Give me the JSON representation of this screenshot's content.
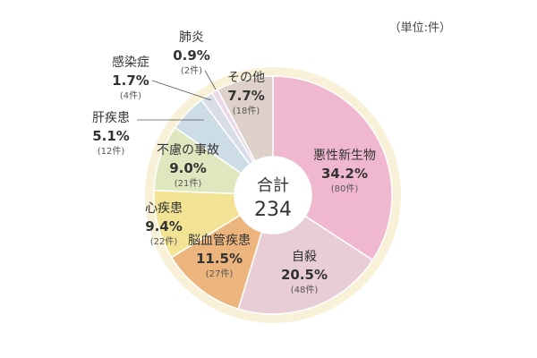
{
  "unit_label": "（単位:件）",
  "center": {
    "line1": "合計",
    "line2": "234"
  },
  "chart_data": {
    "type": "pie",
    "variant": "donut",
    "total": 234,
    "unit": "件",
    "slices": [
      {
        "label": "悪性新生物",
        "percent": "34.2%",
        "count_label": "(80件)",
        "value": 80,
        "color": "#f0b8cf"
      },
      {
        "label": "自殺",
        "percent": "20.5%",
        "count_label": "(48件)",
        "value": 48,
        "color": "#e8cdd6"
      },
      {
        "label": "脳血管疾患",
        "percent": "11.5%",
        "count_label": "(27件)",
        "value": 27,
        "color": "#ecb57e"
      },
      {
        "label": "心疾患",
        "percent": "9.4%",
        "count_label": "(22件)",
        "value": 22,
        "color": "#f3e495"
      },
      {
        "label": "不慮の事故",
        "percent": "9.0%",
        "count_label": "(21件)",
        "value": 21,
        "color": "#dfe7bf"
      },
      {
        "label": "肝疾患",
        "percent": "5.1%",
        "count_label": "(12件)",
        "value": 12,
        "color": "#cddde6"
      },
      {
        "label": "感染症",
        "percent": "1.7%",
        "count_label": "(4件)",
        "value": 4,
        "color": "#d8dde8"
      },
      {
        "label": "肺炎",
        "percent": "0.9%",
        "count_label": "(2件)",
        "value": 2,
        "color": "#ead8e6"
      },
      {
        "label": "その他",
        "percent": "7.7%",
        "count_label": "(18件)",
        "value": 18,
        "color": "#ddd1c9"
      }
    ],
    "ring_color": "#f8f1d8"
  }
}
